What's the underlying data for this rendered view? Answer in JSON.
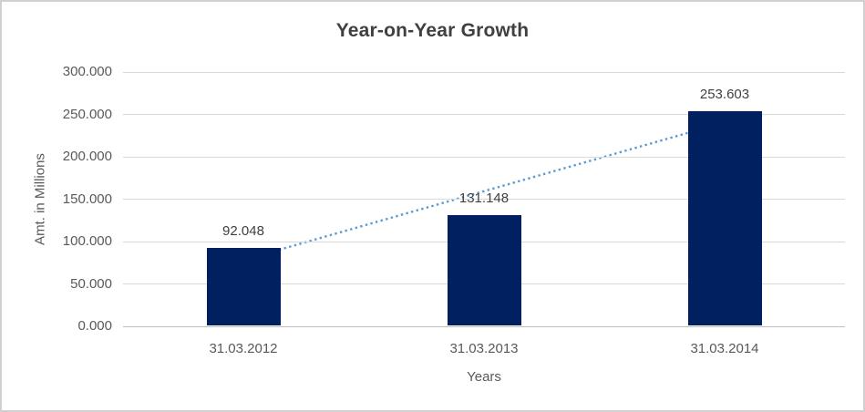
{
  "window": {
    "background": "#ffffff",
    "border_color": "#d1cfcf"
  },
  "chart_data": {
    "type": "bar",
    "title": "Year-on-Year Growth",
    "xlabel": "Years",
    "ylabel": "Amt. in Millions",
    "categories": [
      "31.03.2012",
      "31.03.2013",
      "31.03.2014"
    ],
    "values": [
      92048,
      131148,
      253603
    ],
    "data_labels": [
      "92.048",
      "131.148",
      "253.603"
    ],
    "ylim": [
      0,
      300000
    ],
    "yticks": [
      {
        "value": 0,
        "label": "0.000"
      },
      {
        "value": 50000,
        "label": "50.000"
      },
      {
        "value": 100000,
        "label": "100.000"
      },
      {
        "value": 150000,
        "label": "150.000"
      },
      {
        "value": 200000,
        "label": "200.000"
      },
      {
        "value": 250000,
        "label": "250.000"
      },
      {
        "value": 300000,
        "label": "300.000"
      }
    ],
    "grid": true,
    "legend": "none",
    "bar_color": "#002060",
    "gridline_color": "#d9d9d9",
    "axisline_color": "#bfbfbf",
    "text_color": "#595959",
    "label_color": "#404040",
    "trendline": {
      "type": "linear",
      "style": "dotted",
      "color": "#5b9bd5",
      "start_value": 78218,
      "end_value": 239651
    }
  }
}
